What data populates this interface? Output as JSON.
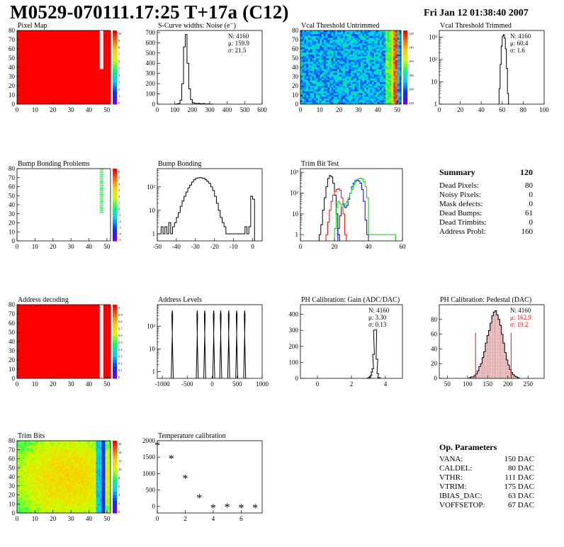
{
  "title": "M0529-070111.17:25 T+17a (C12)",
  "date": "Fri Jan 12 01:38:40 2007",
  "summary": {
    "title": "Summary",
    "value": "120",
    "rows": [
      {
        "label": "Dead Pixels:",
        "value": "80"
      },
      {
        "label": "Noisy Pixels:",
        "value": "0"
      },
      {
        "label": "Mask defects:",
        "value": "0"
      },
      {
        "label": "Dead Bumps:",
        "value": "61"
      },
      {
        "label": "Dead Trimbits:",
        "value": "0"
      },
      {
        "label": "Address Probl:",
        "value": "160"
      }
    ]
  },
  "op_params": {
    "title": "Op. Parameters",
    "rows": [
      {
        "label": "VANA:",
        "value": "150 DAC"
      },
      {
        "label": "CALDEL:",
        "value": "80 DAC"
      },
      {
        "label": "VTHR:",
        "value": "111 DAC"
      },
      {
        "label": "VTRIM:",
        "value": "175 DAC"
      },
      {
        "label": "IBIAS_DAC:",
        "value": "63 DAC"
      },
      {
        "label": "VOFFSETOP:",
        "value": "67 DAC"
      }
    ]
  },
  "chart_data": [
    {
      "id": "pixel-map",
      "type": "heatmap",
      "title": "Pixel Map",
      "xlim": [
        0,
        52
      ],
      "ylim": [
        0,
        80
      ],
      "xticks": [
        0,
        10,
        20,
        30,
        40,
        50
      ],
      "yticks": [
        0,
        10,
        20,
        30,
        40,
        50,
        60,
        70,
        80
      ],
      "fill_color": "#ff0000",
      "dead_column": 46,
      "dead_from_row": 38,
      "palette_ticks": [
        "10",
        "9",
        "8",
        "7",
        "6",
        "5",
        "4",
        "3",
        "2",
        "1",
        "0"
      ]
    },
    {
      "id": "scurve-widths",
      "type": "histogram",
      "title": "S-Curve widths: Noise (e⁻)",
      "xlim": [
        0,
        600
      ],
      "ylim": [
        0,
        720
      ],
      "xticks": [
        0,
        100,
        200,
        300,
        400,
        500,
        600
      ],
      "yticks": [
        0,
        100,
        200,
        300,
        400,
        500,
        600,
        700
      ],
      "stats": [
        "N: 4160",
        "μ: 159.9",
        "σ: 21.5"
      ],
      "bins": [
        [
          100,
          0
        ],
        [
          110,
          3
        ],
        [
          120,
          8
        ],
        [
          130,
          40
        ],
        [
          140,
          200
        ],
        [
          150,
          560
        ],
        [
          160,
          680
        ],
        [
          170,
          400
        ],
        [
          180,
          150
        ],
        [
          190,
          45
        ],
        [
          200,
          15
        ],
        [
          210,
          8
        ],
        [
          220,
          5
        ],
        [
          230,
          8
        ],
        [
          240,
          5
        ],
        [
          250,
          4
        ],
        [
          260,
          6
        ],
        [
          270,
          3
        ],
        [
          280,
          2
        ],
        [
          290,
          3
        ],
        [
          300,
          1
        ],
        [
          310,
          0
        ]
      ]
    },
    {
      "id": "vcal-untrimmed",
      "type": "heatmap",
      "title": "Vcal Threshold Untrimmed",
      "xlim": [
        0,
        52
      ],
      "ylim": [
        0,
        80
      ],
      "xticks": [
        0,
        10,
        20,
        30,
        40,
        50
      ],
      "yticks": [
        0,
        10,
        20,
        30,
        40,
        50,
        60,
        70,
        80
      ],
      "palette_ticks": [
        "120",
        "140",
        "160",
        "180",
        "200",
        "220"
      ]
    },
    {
      "id": "vcal-trimmed",
      "type": "histogram",
      "title": "Vcal Threshold Trimmed",
      "log": true,
      "xlim": [
        0,
        100
      ],
      "ylim": [
        1,
        2000
      ],
      "xticks": [
        0,
        20,
        40,
        60,
        80,
        100
      ],
      "stats": [
        "N: 4160",
        "μ: 60.4",
        "σ: 1.6"
      ],
      "bins": [
        [
          56,
          1
        ],
        [
          57,
          5
        ],
        [
          58,
          60
        ],
        [
          59,
          400
        ],
        [
          60,
          1100
        ],
        [
          61,
          1300
        ],
        [
          62,
          900
        ],
        [
          63,
          300
        ],
        [
          64,
          40
        ],
        [
          65,
          3
        ],
        [
          66,
          1
        ]
      ]
    },
    {
      "id": "bump-problems",
      "type": "heatmap",
      "title": "Bump Bonding Problems",
      "xlim": [
        0,
        52
      ],
      "ylim": [
        0,
        80
      ],
      "xticks": [
        0,
        10,
        20,
        30,
        40,
        50
      ],
      "yticks": [
        0,
        10,
        20,
        30,
        40,
        50,
        60,
        70,
        80
      ],
      "palette_ticks": [
        "6",
        "5",
        "4",
        "3",
        "2",
        "1",
        "0",
        "-1",
        "-2",
        "-3",
        "-4",
        "-5"
      ]
    },
    {
      "id": "bump-bonding",
      "type": "histogram",
      "title": "Bump Bonding",
      "log": true,
      "xlim": [
        -50,
        5
      ],
      "ylim": [
        0.5,
        600
      ],
      "xticks": [
        -50,
        -40,
        -30,
        -20,
        -10,
        0
      ],
      "bins": [
        [
          -50,
          1
        ],
        [
          -49,
          1
        ],
        [
          -48,
          2
        ],
        [
          -47,
          1
        ],
        [
          -46,
          2
        ],
        [
          -45,
          1
        ],
        [
          -44,
          3
        ],
        [
          -43,
          1
        ],
        [
          -42,
          2
        ],
        [
          -41,
          3
        ],
        [
          -40,
          5
        ],
        [
          -39,
          8
        ],
        [
          -38,
          15
        ],
        [
          -37,
          25
        ],
        [
          -36,
          40
        ],
        [
          -35,
          60
        ],
        [
          -34,
          90
        ],
        [
          -33,
          120
        ],
        [
          -32,
          160
        ],
        [
          -31,
          200
        ],
        [
          -30,
          230
        ],
        [
          -29,
          240
        ],
        [
          -28,
          250
        ],
        [
          -27,
          240
        ],
        [
          -26,
          230
        ],
        [
          -25,
          200
        ],
        [
          -24,
          170
        ],
        [
          -23,
          140
        ],
        [
          -22,
          100
        ],
        [
          -21,
          70
        ],
        [
          -20,
          40
        ],
        [
          -19,
          20
        ],
        [
          -18,
          10
        ],
        [
          -17,
          5
        ],
        [
          -16,
          3
        ],
        [
          -15,
          2
        ],
        [
          -14,
          1
        ],
        [
          -5,
          1
        ],
        [
          -4,
          2
        ],
        [
          -3,
          1
        ],
        [
          -2,
          2
        ],
        [
          -1,
          40
        ],
        [
          0,
          30
        ]
      ]
    },
    {
      "id": "trim-bit-test",
      "type": "histogram",
      "title": "Trim Bit Test",
      "log": true,
      "xlim": [
        0,
        60
      ],
      "ylim": [
        0.5,
        1500
      ],
      "xticks": [
        0,
        20,
        40,
        60
      ],
      "series": [
        {
          "color": "#000000",
          "bins": [
            [
              11,
              1
            ],
            [
              12,
              3
            ],
            [
              13,
              15
            ],
            [
              14,
              60
            ],
            [
              15,
              200
            ],
            [
              16,
              500
            ],
            [
              17,
              700
            ],
            [
              18,
              600
            ],
            [
              19,
              300
            ],
            [
              20,
              80
            ],
            [
              21,
              10
            ],
            [
              22,
              1
            ]
          ]
        },
        {
          "color": "#ff0000",
          "bins": [
            [
              15,
              1
            ],
            [
              16,
              4
            ],
            [
              17,
              15
            ],
            [
              18,
              40
            ],
            [
              19,
              80
            ],
            [
              20,
              120
            ],
            [
              21,
              150
            ],
            [
              22,
              160
            ],
            [
              23,
              140
            ],
            [
              24,
              60
            ],
            [
              25,
              10
            ],
            [
              26,
              1
            ]
          ]
        },
        {
          "color": "#0000ff",
          "bins": [
            [
              22,
              2
            ],
            [
              23,
              8
            ],
            [
              24,
              20
            ],
            [
              25,
              30
            ],
            [
              26,
              20
            ],
            [
              27,
              25
            ],
            [
              28,
              50
            ],
            [
              29,
              100
            ],
            [
              30,
              200
            ],
            [
              31,
              300
            ],
            [
              32,
              400
            ],
            [
              33,
              420
            ],
            [
              34,
              380
            ],
            [
              35,
              300
            ],
            [
              36,
              150
            ],
            [
              37,
              40
            ],
            [
              38,
              5
            ],
            [
              39,
              1
            ]
          ]
        },
        {
          "color": "#00cc00",
          "bins": [
            [
              20,
              2
            ],
            [
              21,
              20
            ],
            [
              22,
              40
            ],
            [
              23,
              30
            ],
            [
              24,
              20
            ],
            [
              25,
              25
            ],
            [
              26,
              30
            ],
            [
              27,
              40
            ],
            [
              28,
              60
            ],
            [
              29,
              100
            ],
            [
              30,
              150
            ],
            [
              31,
              250
            ],
            [
              32,
              350
            ],
            [
              33,
              450
            ],
            [
              34,
              500
            ],
            [
              35,
              520
            ],
            [
              36,
              480
            ],
            [
              37,
              350
            ],
            [
              38,
              200
            ],
            [
              39,
              60
            ],
            [
              40,
              1
            ],
            [
              50,
              1
            ],
            [
              55,
              1
            ]
          ]
        }
      ]
    },
    {
      "id": "address-decoding",
      "type": "heatmap",
      "title": "Address decoding",
      "xlim": [
        0,
        52
      ],
      "ylim": [
        0,
        80
      ],
      "xticks": [
        0,
        10,
        20,
        30,
        40,
        50
      ],
      "yticks": [
        0,
        10,
        20,
        30,
        40,
        50,
        60,
        70,
        80
      ],
      "fill_color": "#ff0000",
      "dead_column": 46,
      "dead_from_row": 0,
      "palette_ticks": [
        "1",
        "0.9",
        "0.8",
        "0.7",
        "0.6",
        "0.5",
        "0.4",
        "0.3",
        "0.2",
        "0.1",
        "0"
      ]
    },
    {
      "id": "address-levels",
      "type": "histogram",
      "title": "Address Levels",
      "log": true,
      "xlim": [
        -1100,
        1000
      ],
      "ylim": [
        0.5,
        900
      ],
      "xticks": [
        -1000,
        -500,
        0,
        500,
        1000
      ],
      "peaks": [
        -800,
        -300,
        -150,
        30,
        170,
        330,
        490,
        650
      ]
    },
    {
      "id": "ph-gain",
      "type": "histogram",
      "title": "PH Calibration: Gain (ADC/DAC)",
      "xlim": [
        -1,
        5
      ],
      "ylim": [
        0,
        460
      ],
      "xticks": [
        0,
        2,
        4
      ],
      "yticks": [
        0,
        100,
        200,
        300,
        400
      ],
      "stats": [
        "N: 4160",
        "μ: 3.30",
        "σ: 0.13"
      ],
      "bins": [
        [
          2.9,
          1
        ],
        [
          3.0,
          5
        ],
        [
          3.05,
          10
        ],
        [
          3.1,
          20
        ],
        [
          3.15,
          40
        ],
        [
          3.2,
          60
        ],
        [
          3.25,
          150
        ],
        [
          3.3,
          300
        ],
        [
          3.35,
          420
        ],
        [
          3.4,
          380
        ],
        [
          3.45,
          120
        ],
        [
          3.5,
          30
        ],
        [
          3.55,
          5
        ],
        [
          3.6,
          1
        ]
      ]
    },
    {
      "id": "ph-pedestal",
      "type": "histogram",
      "title": "PH Calibration: Pedestal (DAC)",
      "xlim": [
        30,
        290
      ],
      "ylim": [
        0,
        100
      ],
      "xticks": [
        50,
        100,
        150,
        200,
        250
      ],
      "yticks": [
        0,
        20,
        40,
        60,
        80
      ],
      "stats": [
        "N: 4160",
        "μ: 162.9",
        "σ: 19.2"
      ],
      "cut_lines": [
        120,
        208
      ],
      "bins": [
        [
          104,
          1
        ],
        [
          108,
          2
        ],
        [
          112,
          2
        ],
        [
          116,
          4
        ],
        [
          120,
          6
        ],
        [
          124,
          10
        ],
        [
          128,
          16
        ],
        [
          132,
          20
        ],
        [
          136,
          28
        ],
        [
          140,
          36
        ],
        [
          144,
          48
        ],
        [
          148,
          58
        ],
        [
          152,
          65
        ],
        [
          156,
          75
        ],
        [
          160,
          85
        ],
        [
          164,
          90
        ],
        [
          168,
          92
        ],
        [
          172,
          86
        ],
        [
          176,
          80
        ],
        [
          180,
          72
        ],
        [
          184,
          60
        ],
        [
          188,
          48
        ],
        [
          192,
          35
        ],
        [
          196,
          25
        ],
        [
          200,
          18
        ],
        [
          204,
          12
        ],
        [
          208,
          8
        ],
        [
          212,
          5
        ],
        [
          216,
          3
        ],
        [
          220,
          2
        ],
        [
          224,
          1
        ]
      ]
    },
    {
      "id": "trim-bits",
      "type": "heatmap",
      "title": "Trim Bits",
      "xlim": [
        0,
        52
      ],
      "ylim": [
        0,
        80
      ],
      "xticks": [
        0,
        10,
        20,
        30,
        40,
        50
      ],
      "yticks": [
        0,
        10,
        20,
        30,
        40,
        50,
        60,
        70,
        80
      ],
      "palette_ticks": [
        "16",
        "14",
        "12",
        "10",
        "8",
        "6",
        "4",
        "2",
        "0"
      ]
    },
    {
      "id": "temperature-calibration",
      "type": "scatter",
      "title": "Temperature calibration",
      "xlim": [
        0,
        7.5
      ],
      "ylim": [
        -200,
        2000
      ],
      "xticks": [
        0,
        2,
        4,
        6
      ],
      "yticks": [
        0,
        500,
        1000,
        1500,
        2000
      ],
      "x": [
        0,
        1,
        2,
        3,
        4,
        5,
        6,
        7
      ],
      "y": [
        1850,
        1450,
        850,
        250,
        -50,
        -30,
        -50,
        -50
      ]
    }
  ]
}
